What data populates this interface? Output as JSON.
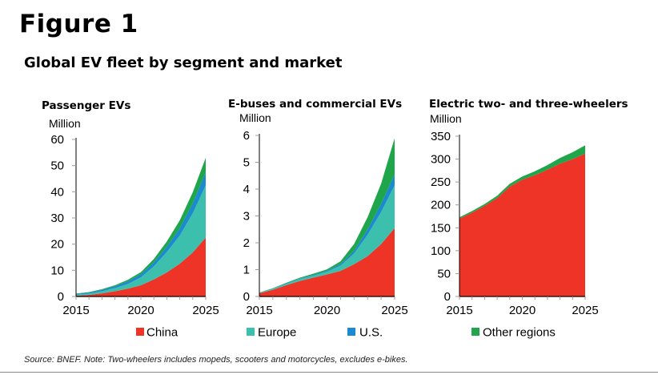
{
  "figure_label": "Figure 1",
  "title": "Global EV fleet by segment and market",
  "source": "Source: BNEF. Note: Two-wheelers includes mopeds, scooters and motorcycles, excludes e-bikes.",
  "colors": {
    "China": "#ee3427",
    "Europe": "#3dbfad",
    "U.S.": "#1b8ad0",
    "Other regions": "#1fa64a",
    "axis": "#000000",
    "tick": "#999999"
  },
  "legend": [
    "China",
    "Europe",
    "U.S.",
    "Other regions"
  ],
  "chart_data": [
    {
      "type": "area",
      "stacked": true,
      "title": "Passenger EVs",
      "unit_label": "Million",
      "x": [
        2015,
        2016,
        2017,
        2018,
        2019,
        2020,
        2021,
        2022,
        2023,
        2024,
        2025
      ],
      "xticks": [
        "2015",
        "2020",
        "2025"
      ],
      "ylim": [
        0,
        60
      ],
      "yticks": [
        "0",
        "10",
        "20",
        "30",
        "40",
        "50",
        "60"
      ],
      "grid": false,
      "series": [
        {
          "name": "China",
          "values": [
            0.3,
            0.6,
            1.2,
            2.0,
            3.0,
            4.3,
            6.5,
            9.2,
            12.5,
            16.8,
            22.5
          ]
        },
        {
          "name": "Europe",
          "values": [
            0.4,
            0.5,
            0.8,
            1.2,
            1.8,
            3.0,
            5.0,
            7.8,
            10.8,
            15.0,
            20.0
          ]
        },
        {
          "name": "U.S.",
          "values": [
            0.3,
            0.4,
            0.5,
            0.7,
            1.0,
            1.2,
            1.5,
            2.0,
            2.8,
            3.8,
            5.0
          ]
        },
        {
          "name": "Other regions",
          "values": [
            0.1,
            0.2,
            0.3,
            0.4,
            0.6,
            0.8,
            1.3,
            2.0,
            3.0,
            4.2,
            5.5
          ]
        }
      ]
    },
    {
      "type": "area",
      "stacked": true,
      "title": "E-buses and commercial EVs",
      "unit_label": "Million",
      "x": [
        2015,
        2016,
        2017,
        2018,
        2019,
        2020,
        2021,
        2022,
        2023,
        2024,
        2025
      ],
      "xticks": [
        "2015",
        "2020",
        "2025"
      ],
      "ylim": [
        0,
        6
      ],
      "yticks": [
        "0",
        "1",
        "2",
        "3",
        "4",
        "5",
        "6"
      ],
      "grid": false,
      "series": [
        {
          "name": "China",
          "values": [
            0.12,
            0.25,
            0.42,
            0.58,
            0.7,
            0.82,
            0.95,
            1.2,
            1.5,
            1.95,
            2.55
          ]
        },
        {
          "name": "Europe",
          "values": [
            0.02,
            0.04,
            0.05,
            0.07,
            0.08,
            0.1,
            0.2,
            0.4,
            0.8,
            1.2,
            1.6
          ]
        },
        {
          "name": "U.S.",
          "values": [
            0.005,
            0.01,
            0.02,
            0.02,
            0.03,
            0.04,
            0.06,
            0.1,
            0.2,
            0.3,
            0.4
          ]
        },
        {
          "name": "Other regions",
          "values": [
            0.005,
            0.01,
            0.02,
            0.03,
            0.04,
            0.05,
            0.1,
            0.25,
            0.45,
            0.75,
            1.35
          ]
        }
      ]
    },
    {
      "type": "area",
      "stacked": true,
      "title": "Electric two- and three-wheelers",
      "unit_label": "Million",
      "x": [
        2015,
        2016,
        2017,
        2018,
        2019,
        2020,
        2021,
        2022,
        2023,
        2024,
        2025
      ],
      "xticks": [
        "2015",
        "2020",
        "2025"
      ],
      "ylim": [
        0,
        350
      ],
      "yticks": [
        "0",
        "50",
        "100",
        "150",
        "200",
        "250",
        "300",
        "350"
      ],
      "grid": false,
      "series": [
        {
          "name": "China",
          "values": [
            170,
            183,
            198,
            215,
            240,
            255,
            265,
            277,
            290,
            300,
            312
          ]
        },
        {
          "name": "Europe",
          "values": [
            0,
            0,
            0,
            0,
            0,
            0,
            0,
            0,
            0,
            0,
            0
          ]
        },
        {
          "name": "U.S.",
          "values": [
            0,
            0,
            0,
            0,
            0,
            0,
            0,
            0,
            0,
            0,
            0
          ]
        },
        {
          "name": "Other regions",
          "values": [
            3,
            3.5,
            4,
            5,
            6,
            7,
            8.5,
            10,
            12.5,
            15,
            18
          ]
        }
      ]
    }
  ]
}
